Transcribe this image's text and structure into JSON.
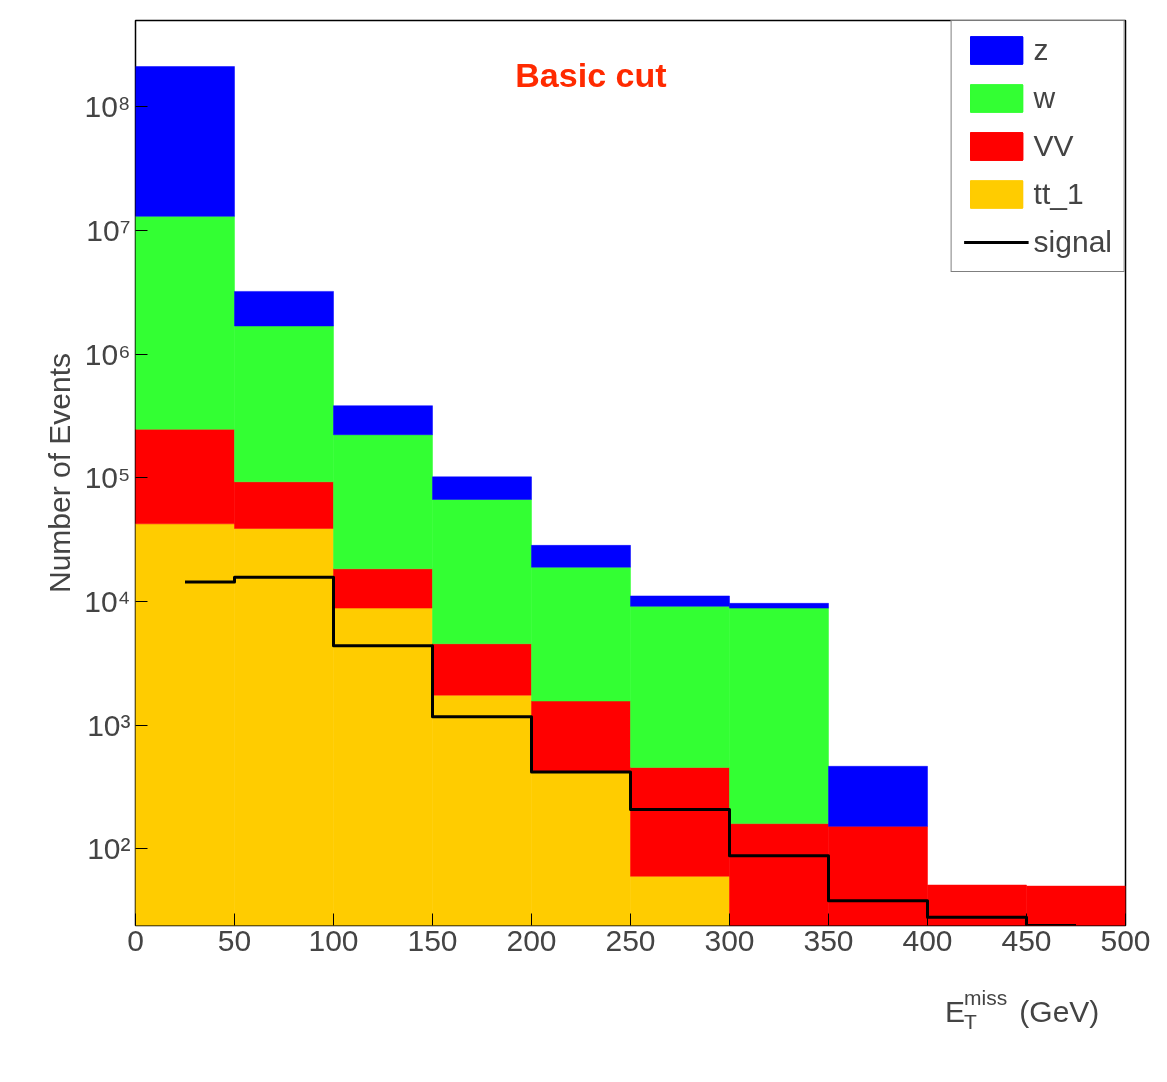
{
  "chart_data": {
    "type": "bar",
    "title": "Basic cut",
    "xlabel": "E$^{miss}$$_{T}$ (GeV)",
    "ylabel": "Number of Events",
    "x": [
      25,
      75,
      125,
      175,
      225,
      275,
      325,
      375,
      425,
      475
    ],
    "stacked": true,
    "log": "y",
    "legend": "top right",
    "grid": false,
    "xlim": [
      0,
      500
    ],
    "ylim": [
      24,
      500000000
    ],
    "xticks": [
      0,
      50,
      100,
      150,
      200,
      250,
      300,
      350,
      400,
      450,
      500
    ],
    "yticks": [
      {
        "value": 100,
        "label": "10²"
      },
      {
        "value": 1000,
        "label": "10³"
      },
      {
        "value": 10000,
        "label": "10⁴"
      },
      {
        "value": 100000,
        "label": "10⁵"
      },
      {
        "value": 1000000,
        "label": "10⁶"
      },
      {
        "value": 10000000,
        "label": "10⁷"
      },
      {
        "value": 100000000,
        "label": "10⁸"
      }
    ],
    "series": [
      {
        "name": "tt_1",
        "color": "#ffcc00",
        "values": [
          42500,
          39000,
          8850,
          1750,
          418,
          60,
          null,
          null,
          null,
          null
        ]
      },
      {
        "name": "VV",
        "color": "#ff0000",
        "values": [
          205000,
          54000,
          9550,
          2810,
          1150,
          396,
          160,
          152,
          51,
          50
        ]
      },
      {
        "name": "w",
        "color": "#33ff33",
        "values": [
          12800000,
          1600000,
          205000,
          62400,
          17400,
          8700,
          8690,
          null,
          null,
          null
        ]
      },
      {
        "name": "z",
        "color": "#0000ff",
        "values": [
          199000000,
          1530000,
          160000,
          35000,
          9500,
          1940,
          820,
          313,
          null,
          null
        ]
      },
      {
        "name": "signal",
        "type": "step",
        "color": "#000000",
        "x": [
          25,
          75,
          125,
          175,
          225,
          275,
          325,
          375,
          425,
          475
        ],
        "values": [
          14400,
          15700,
          4400,
          1170,
          418,
          208,
          88,
          38,
          28,
          24
        ]
      }
    ]
  }
}
